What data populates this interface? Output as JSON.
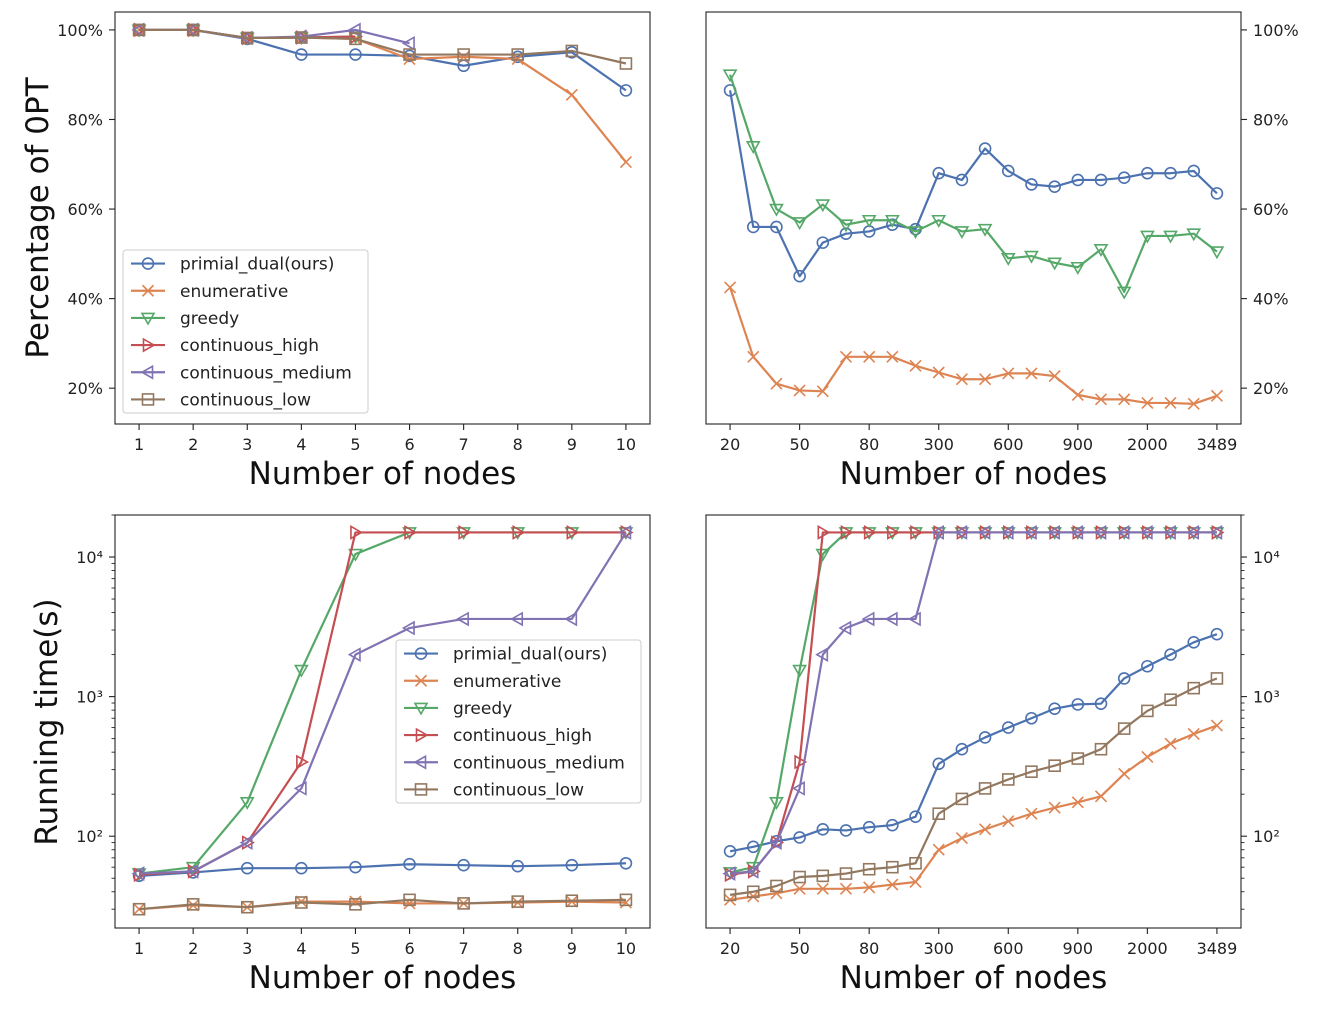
{
  "series_styles": [
    {
      "name": "primial_dual(ours)",
      "color": "#4c72b0",
      "marker": "circle"
    },
    {
      "name": "enumerative",
      "color": "#dd8452",
      "marker": "x"
    },
    {
      "name": "greedy",
      "color": "#55a868",
      "marker": "triangle-down"
    },
    {
      "name": "continuous_high",
      "color": "#c44e52",
      "marker": "triangle-right"
    },
    {
      "name": "continuous_medium",
      "color": "#8172b3",
      "marker": "triangle-left"
    },
    {
      "name": "continuous_low",
      "color": "#937860",
      "marker": "square"
    }
  ],
  "chart_data": [
    {
      "id": "top-left",
      "type": "line",
      "xlabel": "Number of nodes",
      "ylabel": "Percentage of 0PT",
      "y_scale": "linear",
      "y_axis_side": "left",
      "ylim": [
        12,
        104
      ],
      "yticks": [
        20,
        40,
        60,
        80,
        100
      ],
      "ytick_labels": [
        "20%",
        "40%",
        "60%",
        "80%",
        "100%"
      ],
      "x": [
        1,
        2,
        3,
        4,
        5,
        6,
        7,
        8,
        9,
        10
      ],
      "xticks": [
        1,
        2,
        3,
        4,
        5,
        6,
        7,
        8,
        9,
        10
      ],
      "xtick_labels": [
        "1",
        "2",
        "3",
        "4",
        "5",
        "6",
        "7",
        "8",
        "9",
        "10"
      ],
      "legend": "lower-left",
      "series": [
        {
          "name": "primial_dual(ours)",
          "values": [
            100,
            100,
            98,
            94.5,
            94.5,
            94.2,
            92,
            94,
            95,
            86.5
          ]
        },
        {
          "name": "enumerative",
          "values": [
            100,
            100,
            98.2,
            98.3,
            98,
            93.5,
            94,
            93.5,
            85.5,
            70.5
          ]
        },
        {
          "name": "greedy",
          "values": [
            100,
            100,
            98.2,
            98.3,
            98.5,
            null,
            null,
            null,
            null,
            null
          ]
        },
        {
          "name": "continuous_high",
          "values": [
            100,
            100,
            98.2,
            98.3,
            98.5,
            null,
            null,
            null,
            null,
            null
          ]
        },
        {
          "name": "continuous_medium",
          "values": [
            100,
            100,
            98.2,
            98.5,
            100,
            97,
            null,
            null,
            null,
            null
          ]
        },
        {
          "name": "continuous_low",
          "values": [
            100,
            100,
            98.2,
            98.3,
            98,
            94.5,
            94.5,
            94.5,
            95.3,
            92.5
          ]
        }
      ]
    },
    {
      "id": "top-right",
      "type": "line",
      "xlabel": "Number of nodes",
      "ylabel": "",
      "y_scale": "linear",
      "y_axis_side": "right",
      "ylim": [
        12,
        104
      ],
      "yticks": [
        20,
        40,
        60,
        80,
        100
      ],
      "ytick_labels": [
        "20%",
        "40%",
        "60%",
        "80%",
        "100%"
      ],
      "x": [
        20,
        30,
        40,
        50,
        60,
        70,
        80,
        90,
        100,
        300,
        400,
        500,
        600,
        700,
        800,
        900,
        1000,
        1500,
        2000,
        2500,
        3000,
        3489
      ],
      "xticks": [
        20,
        50,
        80,
        300,
        600,
        900,
        2000,
        3489
      ],
      "xtick_labels": [
        "20",
        "50",
        "80",
        "300",
        "600",
        "900",
        "2000",
        "3489"
      ],
      "legend": "none",
      "series": [
        {
          "name": "primial_dual(ours)",
          "values": [
            86.5,
            56,
            56,
            45,
            52.5,
            54.5,
            55,
            56.5,
            55.5,
            68,
            66.5,
            73.5,
            68.5,
            65.5,
            65,
            66.5,
            66.5,
            67,
            68,
            68,
            68.5,
            63.5
          ]
        },
        {
          "name": "enumerative",
          "values": [
            42.5,
            27,
            21,
            19.5,
            19.3,
            27,
            27,
            27,
            25,
            23.5,
            22,
            22,
            23.3,
            23.3,
            22.7,
            18.5,
            17.5,
            17.5,
            16.7,
            16.7,
            16.5,
            18.3
          ]
        },
        {
          "name": "greedy",
          "values": [
            90,
            74,
            60,
            57,
            61,
            56.5,
            57.5,
            57.5,
            55,
            57.5,
            55,
            55.5,
            49,
            49.5,
            48,
            47,
            51,
            41.5,
            54,
            54,
            54.5,
            50.5
          ]
        }
      ]
    },
    {
      "id": "bottom-left",
      "type": "line",
      "xlabel": "Number of nodes",
      "ylabel": "Running time(s)",
      "y_scale": "log",
      "y_axis_side": "left",
      "ylim": [
        22,
        20000
      ],
      "yticks": [
        100,
        1000,
        10000
      ],
      "ytick_labels": [
        "10²",
        "10³",
        "10⁴"
      ],
      "x": [
        1,
        2,
        3,
        4,
        5,
        6,
        7,
        8,
        9,
        10
      ],
      "xticks": [
        1,
        2,
        3,
        4,
        5,
        6,
        7,
        8,
        9,
        10
      ],
      "xtick_labels": [
        "1",
        "2",
        "3",
        "4",
        "5",
        "6",
        "7",
        "8",
        "9",
        "10"
      ],
      "legend": "center-right",
      "series": [
        {
          "name": "primial_dual(ours)",
          "values": [
            52,
            55,
            59,
            59,
            60,
            63,
            62,
            61,
            62,
            64
          ]
        },
        {
          "name": "enumerative",
          "values": [
            30,
            32,
            31,
            34,
            34,
            33,
            33,
            33.5,
            34,
            33.5
          ]
        },
        {
          "name": "greedy",
          "values": [
            54,
            60,
            175,
            1550,
            10500,
            15000,
            15000,
            15000,
            15000,
            15000
          ]
        },
        {
          "name": "continuous_high",
          "values": [
            53,
            56,
            90,
            340,
            15000,
            15000,
            15000,
            15000,
            15000,
            15000
          ]
        },
        {
          "name": "continuous_medium",
          "values": [
            54,
            56,
            90,
            220,
            2000,
            3100,
            3600,
            3600,
            3600,
            15000
          ]
        },
        {
          "name": "continuous_low",
          "values": [
            30,
            32.5,
            31,
            33.5,
            32.5,
            35,
            33,
            34,
            34.5,
            35
          ]
        }
      ]
    },
    {
      "id": "bottom-right",
      "type": "line",
      "xlabel": "Number of nodes",
      "ylabel": "",
      "y_scale": "log",
      "y_axis_side": "right",
      "ylim": [
        22,
        20000
      ],
      "yticks": [
        100,
        1000,
        10000
      ],
      "ytick_labels": [
        "10²",
        "10³",
        "10⁴"
      ],
      "x": [
        20,
        30,
        40,
        50,
        60,
        70,
        80,
        90,
        100,
        300,
        400,
        500,
        600,
        700,
        800,
        900,
        1000,
        1500,
        2000,
        2500,
        3000,
        3489
      ],
      "xticks": [
        20,
        50,
        80,
        300,
        600,
        900,
        2000,
        3489
      ],
      "xtick_labels": [
        "20",
        "50",
        "80",
        "300",
        "600",
        "900",
        "2000",
        "3489"
      ],
      "legend": "none",
      "series": [
        {
          "name": "primial_dual(ours)",
          "values": [
            78,
            84,
            92,
            98,
            112,
            110,
            116,
            120,
            138,
            330,
            420,
            510,
            600,
            700,
            820,
            880,
            890,
            1350,
            1650,
            2000,
            2450,
            2800
          ]
        },
        {
          "name": "enumerative",
          "values": [
            35,
            37,
            39,
            42,
            42,
            42,
            43,
            45,
            47,
            80,
            97,
            112,
            128,
            145,
            160,
            175,
            193,
            280,
            370,
            460,
            540,
            620
          ]
        },
        {
          "name": "greedy",
          "values": [
            55,
            60,
            175,
            1550,
            10500,
            15000,
            15000,
            15000,
            15000,
            15000,
            15000,
            15000,
            15000,
            15000,
            15000,
            15000,
            15000,
            15000,
            15000,
            15000,
            15000,
            15000
          ]
        },
        {
          "name": "continuous_high",
          "values": [
            53,
            56,
            90,
            340,
            15000,
            15000,
            15000,
            15000,
            15000,
            15000,
            15000,
            15000,
            15000,
            15000,
            15000,
            15000,
            15000,
            15000,
            15000,
            15000,
            15000,
            15000
          ]
        },
        {
          "name": "continuous_medium",
          "values": [
            54,
            56,
            90,
            220,
            2000,
            3100,
            3600,
            3600,
            3600,
            15000,
            15000,
            15000,
            15000,
            15000,
            15000,
            15000,
            15000,
            15000,
            15000,
            15000,
            15000,
            15000
          ]
        },
        {
          "name": "continuous_low",
          "values": [
            38,
            40,
            44,
            51,
            52,
            54,
            58,
            60,
            64,
            145,
            185,
            220,
            255,
            290,
            320,
            360,
            420,
            590,
            790,
            950,
            1150,
            1350
          ]
        }
      ]
    }
  ]
}
